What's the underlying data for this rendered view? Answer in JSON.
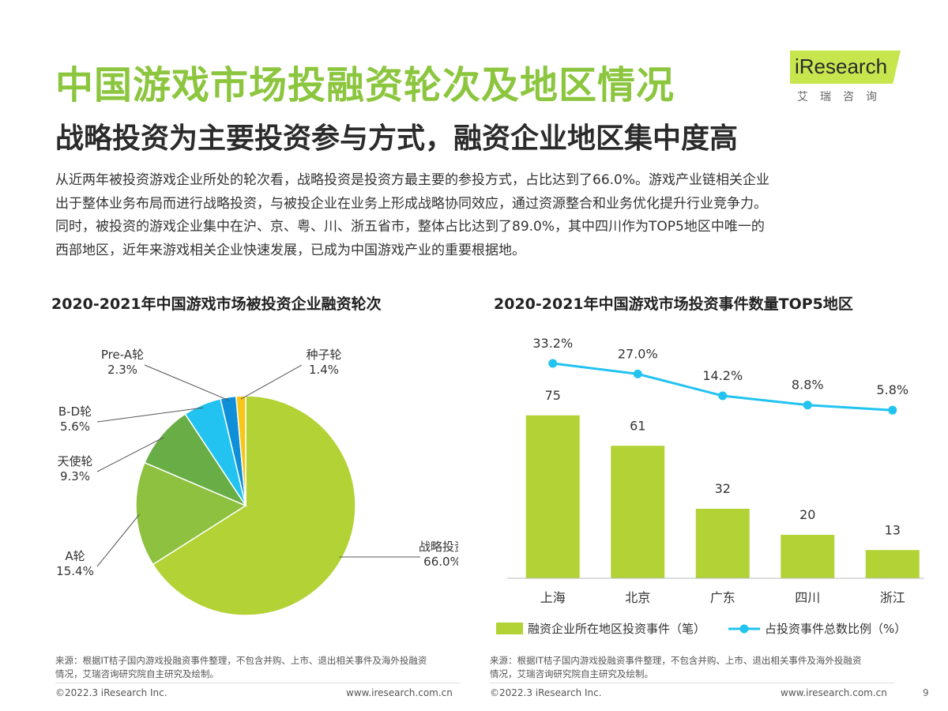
{
  "header": {
    "title": "中国游戏市场投融资轮次及地区情况",
    "subtitle": "战略投资为主要投资参与方式，融资企业地区集中度高",
    "logo_text": "iResearch",
    "logo_sub": "艾瑞咨询"
  },
  "intro_lines": [
    "从近两年被投资游戏企业所处的轮次看，战略投资是投资方最主要的参投方式，占比达到了66.0%。游戏产业链相关企业",
    "出于整体业务布局而进行战略投资，与被投企业在业务上形成战略协同效应，通过资源整合和业务优化提升行业竞争力。",
    "同时，被投资的游戏企业集中在沪、京、粤、川、浙五省市，整体占比达到了89.0%，其中四川作为TOP5地区中唯一的",
    "西部地区，近年来游戏相关企业快速发展，已成为中国游戏产业的重要根据地。"
  ],
  "chart_data": [
    {
      "type": "pie",
      "title": "2020-2021年中国游戏市场被投资企业融资轮次",
      "categories": [
        "战略投资",
        "A轮",
        "天使轮",
        "B-D轮",
        "Pre-A轮",
        "种子轮"
      ],
      "values": [
        66.0,
        15.4,
        9.3,
        5.6,
        2.3,
        1.4
      ],
      "value_labels": [
        "66.0%",
        "15.4%",
        "9.3%",
        "5.6%",
        "2.3%",
        "1.4%"
      ],
      "colors": [
        "#b2d235",
        "#8dc13f",
        "#68ad45",
        "#22c3f0",
        "#0f8fd8",
        "#f7c616"
      ]
    },
    {
      "type": "bar",
      "title": "2020-2021年中国游戏市场投资事件数量TOP5地区",
      "categories": [
        "上海",
        "北京",
        "广东",
        "四川",
        "浙江"
      ],
      "series": [
        {
          "name": "融资企业所在地区投资事件（笔）",
          "type": "bar",
          "values": [
            75,
            61,
            32,
            20,
            13
          ],
          "color": "#b2d235"
        },
        {
          "name": "占投资事件总数比例（%）",
          "type": "line",
          "values": [
            33.2,
            27.0,
            14.2,
            8.8,
            5.8
          ],
          "value_labels": [
            "33.2%",
            "27.0%",
            "14.2%",
            "8.8%",
            "5.8%"
          ],
          "color": "#22c3f0"
        }
      ],
      "legend_position": "bottom"
    }
  ],
  "sources": {
    "left": "来源：根据IT桔子国内游戏投融资事件整理，不包含并购、上市、退出相关事件及海外投融资情况，艾瑞咨询研究院自主研究及绘制。",
    "right": "来源：根据IT桔子国内游戏投融资事件整理，不包含并购、上市、退出相关事件及海外投融资情况，艾瑞咨询研究院自主研究及绘制。"
  },
  "footer": {
    "copyright": "©2022.3 iResearch Inc.",
    "url": "www.iresearch.com.cn",
    "page": "9"
  }
}
